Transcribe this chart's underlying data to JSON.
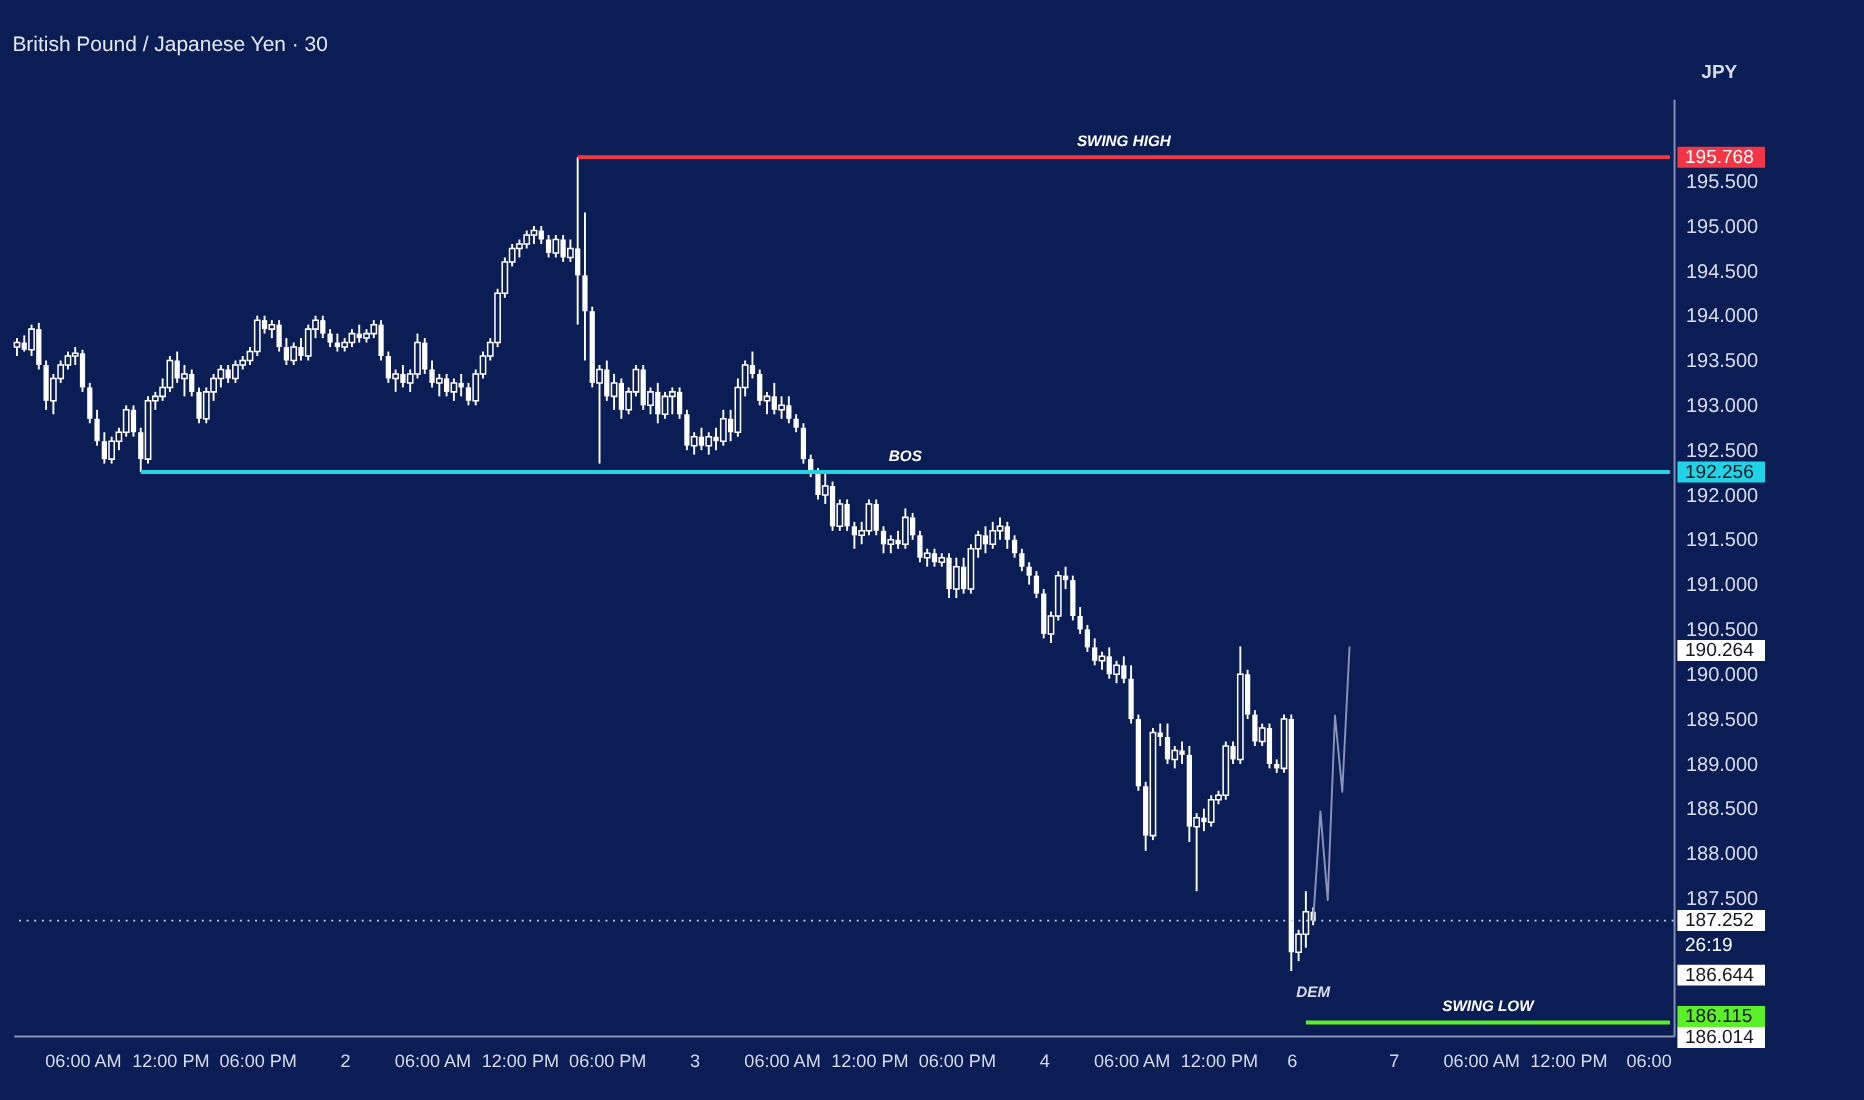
{
  "chart_data": {
    "type": "candlestick",
    "title": "British Pound / Japanese Yen · 30",
    "color": "#ffffff",
    "categories": [
      null,
      null,
      null,
      null,
      null,
      null,
      null,
      null,
      null,
      "06:00 AM",
      null,
      null,
      null,
      null,
      null,
      null,
      null,
      null,
      null,
      null,
      null,
      "12:00 PM",
      null,
      null,
      null,
      null,
      null,
      null,
      null,
      null,
      null,
      null,
      null,
      "06:00 PM",
      null,
      null,
      null,
      null,
      null,
      null,
      null,
      null,
      null,
      null,
      null,
      "2",
      null,
      null,
      null,
      null,
      null,
      null,
      null,
      null,
      null,
      null,
      null,
      "06:00 AM",
      null,
      null,
      null,
      null,
      null,
      null,
      null,
      null,
      null,
      null,
      null,
      "12:00 PM",
      null,
      null,
      null,
      null,
      null,
      null,
      null,
      null,
      null,
      null,
      null,
      "06:00 PM",
      null,
      null,
      null,
      null,
      null,
      null,
      null,
      null,
      null,
      null,
      null,
      "3",
      null,
      null,
      null,
      null,
      null,
      null,
      null,
      null,
      null,
      null,
      null,
      "06:00 AM",
      null,
      null,
      null,
      null,
      null,
      null,
      null,
      null,
      null,
      null,
      null,
      "12:00 PM",
      null,
      null,
      null,
      null,
      null,
      null,
      null,
      null,
      null,
      null,
      null,
      "06:00 PM",
      null,
      null,
      null,
      null,
      null,
      null,
      null,
      null,
      null,
      null,
      null,
      "4",
      null,
      null,
      null,
      null,
      null,
      null,
      null,
      null,
      null,
      null,
      null,
      "06:00 AM",
      null,
      null,
      null,
      null,
      null,
      null,
      null,
      null,
      null,
      null,
      null,
      "12:00 PM",
      null,
      null,
      null,
      null,
      null,
      null,
      null,
      null,
      null,
      "6",
      null,
      null,
      null,
      null,
      null,
      null,
      null,
      null,
      null,
      null,
      null,
      null,
      null,
      "7",
      null,
      null,
      null,
      null,
      null,
      null,
      null,
      null,
      null,
      null,
      null,
      "06:00 AM",
      null,
      null,
      null,
      null,
      null,
      null,
      null,
      null,
      null,
      null,
      null,
      "12:00 PM",
      null,
      null,
      null,
      null,
      null,
      null,
      null,
      null,
      null,
      null,
      "06:00",
      null,
      null,
      null
    ],
    "ohlc": [
      [
        193.65,
        193.75,
        193.55,
        193.7
      ],
      [
        193.7,
        193.78,
        193.6,
        193.62
      ],
      [
        193.62,
        193.9,
        193.55,
        193.85
      ],
      [
        193.85,
        193.92,
        193.4,
        193.45
      ],
      [
        193.45,
        193.5,
        192.95,
        193.05
      ],
      [
        193.05,
        193.35,
        192.9,
        193.3
      ],
      [
        193.3,
        193.5,
        193.25,
        193.45
      ],
      [
        193.45,
        193.6,
        193.4,
        193.55
      ],
      [
        193.55,
        193.65,
        193.45,
        193.58
      ],
      [
        193.58,
        193.62,
        193.15,
        193.2
      ],
      [
        193.2,
        193.25,
        192.8,
        192.85
      ],
      [
        192.85,
        192.95,
        192.55,
        192.6
      ],
      [
        192.6,
        192.7,
        192.35,
        192.4
      ],
      [
        192.4,
        192.65,
        192.35,
        192.6
      ],
      [
        192.6,
        192.75,
        192.5,
        192.7
      ],
      [
        192.7,
        193.0,
        192.65,
        192.95
      ],
      [
        192.95,
        193.0,
        192.65,
        192.7
      ],
      [
        192.7,
        192.75,
        192.256,
        192.4
      ],
      [
        192.4,
        193.1,
        192.35,
        193.05
      ],
      [
        193.05,
        193.15,
        192.95,
        193.1
      ],
      [
        193.1,
        193.3,
        193.05,
        193.2
      ],
      [
        193.2,
        193.55,
        193.15,
        193.5
      ],
      [
        193.5,
        193.6,
        193.25,
        193.3
      ],
      [
        193.3,
        193.45,
        193.1,
        193.35
      ],
      [
        193.35,
        193.4,
        193.1,
        193.15
      ],
      [
        193.15,
        193.2,
        192.8,
        192.85
      ],
      [
        192.85,
        193.2,
        192.8,
        193.15
      ],
      [
        193.15,
        193.35,
        193.05,
        193.3
      ],
      [
        193.3,
        193.45,
        193.2,
        193.4
      ],
      [
        193.4,
        193.45,
        193.25,
        193.3
      ],
      [
        193.3,
        193.5,
        193.25,
        193.45
      ],
      [
        193.45,
        193.55,
        193.4,
        193.5
      ],
      [
        193.5,
        193.65,
        193.45,
        193.6
      ],
      [
        193.6,
        194.0,
        193.55,
        193.95
      ],
      [
        193.95,
        194.0,
        193.8,
        193.85
      ],
      [
        193.85,
        193.95,
        193.75,
        193.9
      ],
      [
        193.9,
        193.95,
        193.6,
        193.65
      ],
      [
        193.65,
        193.75,
        193.45,
        193.5
      ],
      [
        193.5,
        193.7,
        193.45,
        193.65
      ],
      [
        193.65,
        193.75,
        193.5,
        193.55
      ],
      [
        193.55,
        193.9,
        193.5,
        193.85
      ],
      [
        193.85,
        194.0,
        193.75,
        193.95
      ],
      [
        193.95,
        194.0,
        193.75,
        193.8
      ],
      [
        193.8,
        193.85,
        193.65,
        193.7
      ],
      [
        193.7,
        193.8,
        193.6,
        193.65
      ],
      [
        193.65,
        193.75,
        193.6,
        193.7
      ],
      [
        193.7,
        193.85,
        193.65,
        193.8
      ],
      [
        193.8,
        193.9,
        193.7,
        193.75
      ],
      [
        193.75,
        193.85,
        193.7,
        193.8
      ],
      [
        193.8,
        193.95,
        193.75,
        193.9
      ],
      [
        193.9,
        193.95,
        193.5,
        193.55
      ],
      [
        193.55,
        193.6,
        193.25,
        193.3
      ],
      [
        193.3,
        193.4,
        193.15,
        193.35
      ],
      [
        193.35,
        193.45,
        193.2,
        193.25
      ],
      [
        193.25,
        193.4,
        193.15,
        193.35
      ],
      [
        193.35,
        193.8,
        193.3,
        193.7
      ],
      [
        193.7,
        193.75,
        193.35,
        193.4
      ],
      [
        193.4,
        193.5,
        193.2,
        193.25
      ],
      [
        193.25,
        193.35,
        193.1,
        193.3
      ],
      [
        193.3,
        193.35,
        193.1,
        193.15
      ],
      [
        193.15,
        193.3,
        193.05,
        193.25
      ],
      [
        193.25,
        193.35,
        193.1,
        193.2
      ],
      [
        193.2,
        193.25,
        193.0,
        193.05
      ],
      [
        193.05,
        193.4,
        193.0,
        193.35
      ],
      [
        193.35,
        193.6,
        193.3,
        193.55
      ],
      [
        193.55,
        193.75,
        193.5,
        193.7
      ],
      [
        193.7,
        194.3,
        193.65,
        194.25
      ],
      [
        194.25,
        194.65,
        194.2,
        194.6
      ],
      [
        194.6,
        194.8,
        194.55,
        194.75
      ],
      [
        194.75,
        194.85,
        194.65,
        194.8
      ],
      [
        194.8,
        194.95,
        194.75,
        194.9
      ],
      [
        194.9,
        195.0,
        194.8,
        194.95
      ],
      [
        194.95,
        195.0,
        194.8,
        194.85
      ],
      [
        194.85,
        194.9,
        194.65,
        194.7
      ],
      [
        194.7,
        194.9,
        194.65,
        194.85
      ],
      [
        194.85,
        194.9,
        194.6,
        194.65
      ],
      [
        194.65,
        194.85,
        194.6,
        194.75
      ],
      [
        194.75,
        195.768,
        193.9,
        194.45
      ],
      [
        194.45,
        195.15,
        193.5,
        194.05
      ],
      [
        194.05,
        194.1,
        193.2,
        193.25
      ],
      [
        193.25,
        193.45,
        192.35,
        193.4
      ],
      [
        193.4,
        193.5,
        193.05,
        193.1
      ],
      [
        193.1,
        193.35,
        192.95,
        193.25
      ],
      [
        193.25,
        193.3,
        192.85,
        192.95
      ],
      [
        192.95,
        193.2,
        192.9,
        193.15
      ],
      [
        193.15,
        193.45,
        193.1,
        193.4
      ],
      [
        193.4,
        193.45,
        192.95,
        193.0
      ],
      [
        193.0,
        193.2,
        192.9,
        193.15
      ],
      [
        193.15,
        193.25,
        192.8,
        192.9
      ],
      [
        192.9,
        193.15,
        192.85,
        193.1
      ],
      [
        193.1,
        193.2,
        192.9,
        193.15
      ],
      [
        193.15,
        193.2,
        192.85,
        192.9
      ],
      [
        192.9,
        192.95,
        192.5,
        192.55
      ],
      [
        192.55,
        192.7,
        192.45,
        192.65
      ],
      [
        192.65,
        192.75,
        192.5,
        192.55
      ],
      [
        192.55,
        192.7,
        192.45,
        192.65
      ],
      [
        192.65,
        192.75,
        192.5,
        192.6
      ],
      [
        192.6,
        192.95,
        192.55,
        192.85
      ],
      [
        192.85,
        192.95,
        192.6,
        192.7
      ],
      [
        192.7,
        193.3,
        192.65,
        193.2
      ],
      [
        193.2,
        193.5,
        193.1,
        193.45
      ],
      [
        193.45,
        193.6,
        193.3,
        193.35
      ],
      [
        193.35,
        193.4,
        193.0,
        193.05
      ],
      [
        193.05,
        193.15,
        192.9,
        193.1
      ],
      [
        193.1,
        193.25,
        192.9,
        192.95
      ],
      [
        192.95,
        193.1,
        192.85,
        193.0
      ],
      [
        193.0,
        193.1,
        192.8,
        192.85
      ],
      [
        192.85,
        192.9,
        192.7,
        192.75
      ],
      [
        192.75,
        192.8,
        192.35,
        192.4
      ],
      [
        192.4,
        192.45,
        192.2,
        192.25
      ],
      [
        192.25,
        192.3,
        191.95,
        192.0
      ],
      [
        192.0,
        192.25,
        191.9,
        192.1
      ],
      [
        192.1,
        192.15,
        191.6,
        191.65
      ],
      [
        191.65,
        191.95,
        191.6,
        191.9
      ],
      [
        191.9,
        191.95,
        191.6,
        191.65
      ],
      [
        191.65,
        191.7,
        191.4,
        191.55
      ],
      [
        191.55,
        191.7,
        191.45,
        191.6
      ],
      [
        191.6,
        191.95,
        191.55,
        191.9
      ],
      [
        191.9,
        191.95,
        191.55,
        191.6
      ],
      [
        191.6,
        191.65,
        191.35,
        191.45
      ],
      [
        191.45,
        191.55,
        191.35,
        191.5
      ],
      [
        191.5,
        191.6,
        191.4,
        191.45
      ],
      [
        191.45,
        191.85,
        191.4,
        191.75
      ],
      [
        191.75,
        191.8,
        191.5,
        191.55
      ],
      [
        191.55,
        191.6,
        191.25,
        191.3
      ],
      [
        191.3,
        191.4,
        191.2,
        191.35
      ],
      [
        191.35,
        191.4,
        191.2,
        191.25
      ],
      [
        191.25,
        191.35,
        191.2,
        191.3
      ],
      [
        191.3,
        191.35,
        190.85,
        190.95
      ],
      [
        190.95,
        191.3,
        190.85,
        191.2
      ],
      [
        191.2,
        191.3,
        190.9,
        190.95
      ],
      [
        190.95,
        191.45,
        190.9,
        191.4
      ],
      [
        191.4,
        191.6,
        191.3,
        191.55
      ],
      [
        191.55,
        191.65,
        191.35,
        191.45
      ],
      [
        191.45,
        191.7,
        191.4,
        191.6
      ],
      [
        191.6,
        191.75,
        191.5,
        191.65
      ],
      [
        191.65,
        191.7,
        191.4,
        191.5
      ],
      [
        191.5,
        191.55,
        191.3,
        191.35
      ],
      [
        191.35,
        191.4,
        191.15,
        191.2
      ],
      [
        191.2,
        191.25,
        191.0,
        191.1
      ],
      [
        191.1,
        191.15,
        190.85,
        190.9
      ],
      [
        190.9,
        190.95,
        190.4,
        190.45
      ],
      [
        190.45,
        190.7,
        190.35,
        190.65
      ],
      [
        190.65,
        191.15,
        190.6,
        191.1
      ],
      [
        191.1,
        191.2,
        190.95,
        191.05
      ],
      [
        191.05,
        191.1,
        190.6,
        190.65
      ],
      [
        190.65,
        190.75,
        190.45,
        190.5
      ],
      [
        190.5,
        190.55,
        190.25,
        190.3
      ],
      [
        190.3,
        190.4,
        190.1,
        190.15
      ],
      [
        190.15,
        190.25,
        190.05,
        190.2
      ],
      [
        190.2,
        190.3,
        189.95,
        190.0
      ],
      [
        190.0,
        190.15,
        189.9,
        190.1
      ],
      [
        190.1,
        190.2,
        189.9,
        189.95
      ],
      [
        189.95,
        190.1,
        189.45,
        189.5
      ],
      [
        189.5,
        189.55,
        188.7,
        188.75
      ],
      [
        188.75,
        188.8,
        188.03,
        188.2
      ],
      [
        188.2,
        189.4,
        188.15,
        189.35
      ],
      [
        189.35,
        189.45,
        189.2,
        189.3
      ],
      [
        189.3,
        189.45,
        189.0,
        189.05
      ],
      [
        189.05,
        189.2,
        188.95,
        189.15
      ],
      [
        189.15,
        189.25,
        189.0,
        189.1
      ],
      [
        189.1,
        189.2,
        188.13,
        188.3
      ],
      [
        188.3,
        188.45,
        187.58,
        188.4
      ],
      [
        188.4,
        188.5,
        188.25,
        188.35
      ],
      [
        188.35,
        188.65,
        188.3,
        188.6
      ],
      [
        188.6,
        188.7,
        188.55,
        188.65
      ],
      [
        188.65,
        189.25,
        188.6,
        189.2
      ],
      [
        189.2,
        189.25,
        189.0,
        189.05
      ],
      [
        189.05,
        190.31,
        189.0,
        190.0
      ],
      [
        190.0,
        190.05,
        189.5,
        189.55
      ],
      [
        189.55,
        189.6,
        189.2,
        189.25
      ],
      [
        189.25,
        189.45,
        189.2,
        189.4
      ],
      [
        189.4,
        189.45,
        188.95,
        189.0
      ],
      [
        189.0,
        189.05,
        188.9,
        188.95
      ],
      [
        188.95,
        189.55,
        188.9,
        189.5
      ],
      [
        189.5,
        189.55,
        186.69,
        186.9
      ],
      [
        186.9,
        187.15,
        186.8,
        187.1
      ],
      [
        187.1,
        187.58,
        186.95,
        187.35
      ],
      [
        187.35,
        187.4,
        187.2,
        187.252
      ],
      null,
      null,
      null,
      null,
      null,
      null,
      null,
      null,
      null,
      null,
      null,
      null,
      null,
      null,
      null,
      null,
      null,
      null,
      null,
      null,
      null,
      null,
      null,
      null,
      null,
      null,
      null,
      null,
      null,
      null,
      null,
      null,
      null,
      null,
      null,
      null,
      null,
      null,
      null,
      null,
      null,
      null,
      null,
      null,
      null,
      null,
      null,
      null,
      null
    ],
    "series": [
      {
        "type": "line",
        "name": "SWING HIGH",
        "color": "#f23645",
        "values": [
          null,
          null,
          null,
          null,
          null,
          null,
          null,
          null,
          null,
          null,
          null,
          null,
          null,
          null,
          null,
          null,
          null,
          null,
          null,
          null,
          null,
          null,
          null,
          null,
          null,
          null,
          null,
          null,
          null,
          null,
          null,
          null,
          null,
          null,
          null,
          null,
          null,
          null,
          null,
          null,
          null,
          null,
          null,
          null,
          null,
          null,
          null,
          null,
          null,
          null,
          null,
          null,
          null,
          null,
          null,
          null,
          null,
          null,
          null,
          null,
          null,
          null,
          null,
          null,
          null,
          null,
          null,
          null,
          null,
          null,
          null,
          null,
          null,
          null,
          null,
          null,
          null,
          195.768,
          195.768,
          195.768,
          195.768,
          195.768,
          195.768,
          195.768,
          195.768,
          195.768,
          195.768,
          195.768,
          195.768,
          195.768,
          195.768,
          195.768,
          195.768,
          195.768,
          195.768,
          195.768,
          195.768,
          195.768,
          195.768,
          195.768,
          195.768,
          195.768,
          195.768,
          195.768,
          195.768,
          195.768,
          195.768,
          195.768,
          195.768,
          195.768,
          195.768,
          195.768,
          195.768,
          195.768,
          195.768,
          195.768,
          195.768,
          195.768,
          195.768,
          195.768,
          195.768,
          195.768,
          195.768,
          195.768,
          195.768,
          195.768,
          195.768,
          195.768,
          195.768,
          195.768,
          195.768,
          195.768,
          195.768,
          195.768,
          195.768,
          195.768,
          195.768,
          195.768,
          195.768,
          195.768,
          195.768,
          195.768,
          195.768,
          195.768,
          195.768,
          195.768,
          195.768,
          195.768,
          195.768,
          195.768,
          195.768,
          195.768,
          195.768,
          195.768,
          195.768,
          195.768,
          195.768,
          195.768,
          195.768,
          195.768,
          195.768,
          195.768,
          195.768,
          195.768,
          195.768,
          195.768,
          195.768,
          195.768,
          195.768,
          195.768,
          195.768,
          195.768,
          195.768,
          195.768,
          195.768,
          195.768,
          195.768,
          195.768,
          195.768,
          195.768,
          195.768,
          195.768,
          195.768,
          195.768,
          195.768,
          195.768,
          195.768,
          195.768,
          195.768,
          195.768,
          195.768,
          195.768,
          195.768,
          195.768,
          195.768,
          195.768,
          195.768,
          195.768,
          195.768,
          195.768,
          195.768,
          195.768,
          195.768,
          195.768,
          195.768,
          195.768,
          195.768,
          195.768,
          195.768,
          195.768,
          195.768,
          195.768,
          195.768,
          195.768,
          195.768,
          195.768,
          195.768,
          195.768,
          195.768,
          195.768,
          195.768,
          195.768,
          195.768,
          195.768,
          195.768,
          195.768,
          195.768,
          195.768
        ]
      },
      {
        "type": "line",
        "name": "BOS",
        "color": "#22d3e6",
        "values": [
          null,
          null,
          null,
          null,
          null,
          null,
          null,
          null,
          null,
          null,
          null,
          null,
          null,
          null,
          null,
          null,
          null,
          192.256,
          192.256,
          192.256,
          192.256,
          192.256,
          192.256,
          192.256,
          192.256,
          192.256,
          192.256,
          192.256,
          192.256,
          192.256,
          192.256,
          192.256,
          192.256,
          192.256,
          192.256,
          192.256,
          192.256,
          192.256,
          192.256,
          192.256,
          192.256,
          192.256,
          192.256,
          192.256,
          192.256,
          192.256,
          192.256,
          192.256,
          192.256,
          192.256,
          192.256,
          192.256,
          192.256,
          192.256,
          192.256,
          192.256,
          192.256,
          192.256,
          192.256,
          192.256,
          192.256,
          192.256,
          192.256,
          192.256,
          192.256,
          192.256,
          192.256,
          192.256,
          192.256,
          192.256,
          192.256,
          192.256,
          192.256,
          192.256,
          192.256,
          192.256,
          192.256,
          192.256,
          192.256,
          192.256,
          192.256,
          192.256,
          192.256,
          192.256,
          192.256,
          192.256,
          192.256,
          192.256,
          192.256,
          192.256,
          192.256,
          192.256,
          192.256,
          192.256,
          192.256,
          192.256,
          192.256,
          192.256,
          192.256,
          192.256,
          192.256,
          192.256,
          192.256,
          192.256,
          192.256,
          192.256,
          192.256,
          192.256,
          192.256,
          192.256,
          192.256,
          192.256,
          192.256,
          192.256,
          192.256,
          192.256,
          192.256,
          192.256,
          192.256,
          192.256,
          192.256,
          192.256,
          192.256,
          192.256,
          192.256,
          192.256,
          192.256,
          192.256,
          192.256,
          192.256,
          192.256,
          192.256,
          192.256,
          192.256,
          192.256,
          192.256,
          192.256,
          192.256,
          192.256,
          192.256,
          192.256,
          192.256,
          192.256,
          192.256,
          192.256,
          192.256,
          192.256,
          192.256,
          192.256,
          192.256,
          192.256,
          192.256,
          192.256,
          192.256,
          192.256,
          192.256,
          192.256,
          192.256,
          192.256,
          192.256,
          192.256,
          192.256,
          192.256,
          192.256,
          192.256,
          192.256,
          192.256,
          192.256,
          192.256,
          192.256,
          192.256,
          192.256,
          192.256,
          192.256,
          192.256,
          192.256,
          192.256,
          192.256,
          192.256,
          192.256,
          192.256,
          192.256,
          192.256,
          192.256,
          192.256,
          192.256,
          192.256,
          192.256,
          192.256,
          192.256,
          192.256,
          192.256,
          192.256,
          192.256,
          192.256,
          192.256,
          192.256,
          192.256,
          192.256,
          192.256,
          192.256,
          192.256,
          192.256,
          192.256,
          192.256,
          192.256,
          192.256,
          192.256,
          192.256,
          192.256,
          192.256,
          192.256,
          192.256,
          192.256,
          192.256,
          192.256,
          192.256,
          192.256,
          192.256,
          192.256,
          192.256,
          192.256,
          192.256,
          192.256,
          192.256,
          192.256,
          192.256,
          192.256
        ]
      },
      {
        "type": "line",
        "name": "SWING LOW",
        "color": "#5cf02a",
        "values": [
          null,
          null,
          null,
          null,
          null,
          null,
          null,
          null,
          null,
          null,
          null,
          null,
          null,
          null,
          null,
          null,
          null,
          null,
          null,
          null,
          null,
          null,
          null,
          null,
          null,
          null,
          null,
          null,
          null,
          null,
          null,
          null,
          null,
          null,
          null,
          null,
          null,
          null,
          null,
          null,
          null,
          null,
          null,
          null,
          null,
          null,
          null,
          null,
          null,
          null,
          null,
          null,
          null,
          null,
          null,
          null,
          null,
          null,
          null,
          null,
          null,
          null,
          null,
          null,
          null,
          null,
          null,
          null,
          null,
          null,
          null,
          null,
          null,
          null,
          null,
          null,
          null,
          null,
          null,
          null,
          null,
          null,
          null,
          null,
          null,
          null,
          null,
          null,
          null,
          null,
          null,
          null,
          null,
          null,
          null,
          null,
          null,
          null,
          null,
          null,
          null,
          null,
          null,
          null,
          null,
          null,
          null,
          null,
          null,
          null,
          null,
          null,
          null,
          null,
          null,
          null,
          null,
          null,
          null,
          null,
          null,
          null,
          null,
          null,
          null,
          null,
          null,
          null,
          null,
          null,
          null,
          null,
          null,
          null,
          null,
          null,
          null,
          null,
          null,
          null,
          null,
          null,
          null,
          null,
          null,
          null,
          null,
          null,
          null,
          null,
          null,
          null,
          null,
          null,
          null,
          null,
          null,
          null,
          null,
          null,
          null,
          null,
          null,
          null,
          null,
          null,
          null,
          null,
          null,
          null,
          null,
          null,
          null,
          null,
          null,
          null,
          null,
          186.115,
          186.115,
          186.115,
          186.115,
          186.115,
          186.115,
          186.115,
          186.115,
          186.115,
          186.115,
          186.115,
          186.115,
          186.115,
          186.115,
          186.115,
          186.115,
          186.115,
          186.115,
          186.115,
          186.115,
          186.115,
          186.115,
          186.115,
          186.115,
          186.115,
          186.115,
          186.115,
          186.115,
          186.115,
          186.115,
          186.115,
          186.115,
          186.115,
          186.115,
          186.115,
          186.115,
          186.115,
          186.115,
          186.115,
          186.115,
          186.115,
          186.115,
          186.115,
          186.115,
          186.115,
          186.115,
          186.115,
          186.115,
          186.115,
          186.115,
          186.115
        ]
      },
      {
        "type": "line",
        "color": "#8c95b5",
        "values": [
          null,
          null,
          null,
          null,
          null,
          null,
          null,
          null,
          null,
          null,
          null,
          null,
          null,
          null,
          null,
          null,
          null,
          null,
          null,
          null,
          null,
          null,
          null,
          null,
          null,
          null,
          null,
          null,
          null,
          null,
          null,
          null,
          null,
          null,
          null,
          null,
          null,
          null,
          null,
          null,
          null,
          null,
          null,
          null,
          null,
          null,
          null,
          null,
          null,
          null,
          null,
          null,
          null,
          null,
          null,
          null,
          null,
          null,
          null,
          null,
          null,
          null,
          null,
          null,
          null,
          null,
          null,
          null,
          null,
          null,
          null,
          null,
          null,
          null,
          null,
          null,
          null,
          null,
          null,
          null,
          null,
          null,
          null,
          null,
          null,
          null,
          null,
          null,
          null,
          null,
          null,
          null,
          null,
          null,
          null,
          null,
          null,
          null,
          null,
          null,
          null,
          null,
          null,
          null,
          null,
          null,
          null,
          null,
          null,
          null,
          null,
          null,
          null,
          null,
          null,
          null,
          null,
          null,
          null,
          null,
          null,
          null,
          null,
          null,
          null,
          null,
          null,
          null,
          null,
          null,
          null,
          null,
          null,
          null,
          null,
          null,
          null,
          null,
          null,
          null,
          null,
          null,
          null,
          null,
          null,
          null,
          null,
          null,
          null,
          null,
          null,
          null,
          null,
          null,
          null,
          null,
          null,
          null,
          null,
          null,
          null,
          null,
          null,
          null,
          null,
          null,
          null,
          null,
          null,
          null,
          null,
          null,
          null,
          null,
          null,
          null,
          null,
          null,
          187.252,
          188.47,
          187.48,
          189.54,
          188.69,
          190.31,
          null,
          null,
          null,
          null,
          null,
          null,
          null,
          null,
          null,
          null,
          null,
          null,
          null,
          null,
          null,
          null,
          null,
          null,
          null,
          null,
          null,
          null,
          null,
          null,
          null,
          null,
          null,
          null,
          null,
          null,
          null,
          null,
          null,
          null,
          null,
          null,
          null,
          null,
          null,
          null,
          null,
          null,
          null,
          null
        ]
      }
    ],
    "ref_lines": [
      {
        "axis": "y",
        "value": 187.252,
        "label": "187.252",
        "color": "#c8cde0",
        "line_style": "dotted"
      }
    ],
    "annotations": [
      "JPY",
      "26:19",
      "DEM"
    ],
    "ylim": [
      185.97,
      196.42
    ],
    "yticks": [
      {
        "value": 187.5,
        "label": "187.500"
      },
      {
        "value": 188,
        "label": "188.000"
      },
      {
        "value": 188.5,
        "label": "188.500"
      },
      {
        "value": 189,
        "label": "189.000"
      },
      {
        "value": 189.5,
        "label": "189.500"
      },
      {
        "value": 190,
        "label": "190.000"
      },
      {
        "value": 190.5,
        "label": "190.500"
      },
      {
        "value": 191,
        "label": "191.000"
      },
      {
        "value": 191.5,
        "label": "191.500"
      },
      {
        "value": 192,
        "label": "192.000"
      },
      {
        "value": 192.5,
        "label": "192.500"
      },
      {
        "value": 193,
        "label": "193.000"
      },
      {
        "value": 193.5,
        "label": "193.500"
      },
      {
        "value": 194,
        "label": "194.000"
      },
      {
        "value": 194.5,
        "label": "194.500"
      },
      {
        "value": 195,
        "label": "195.000"
      },
      {
        "value": 195.5,
        "label": "195.500"
      },
      {
        "value": 195.768,
        "label": "195.768"
      },
      {
        "value": 192.256,
        "label": "192.256"
      },
      {
        "value": 190.264,
        "label": "190.264"
      },
      {
        "value": 186.644,
        "label": "186.644"
      },
      {
        "value": 186.115,
        "label": "186.115"
      },
      {
        "value": 186.014,
        "label": "186.014"
      }
    ],
    "grid": false,
    "marker": "none",
    "line_style": "solid"
  }
}
